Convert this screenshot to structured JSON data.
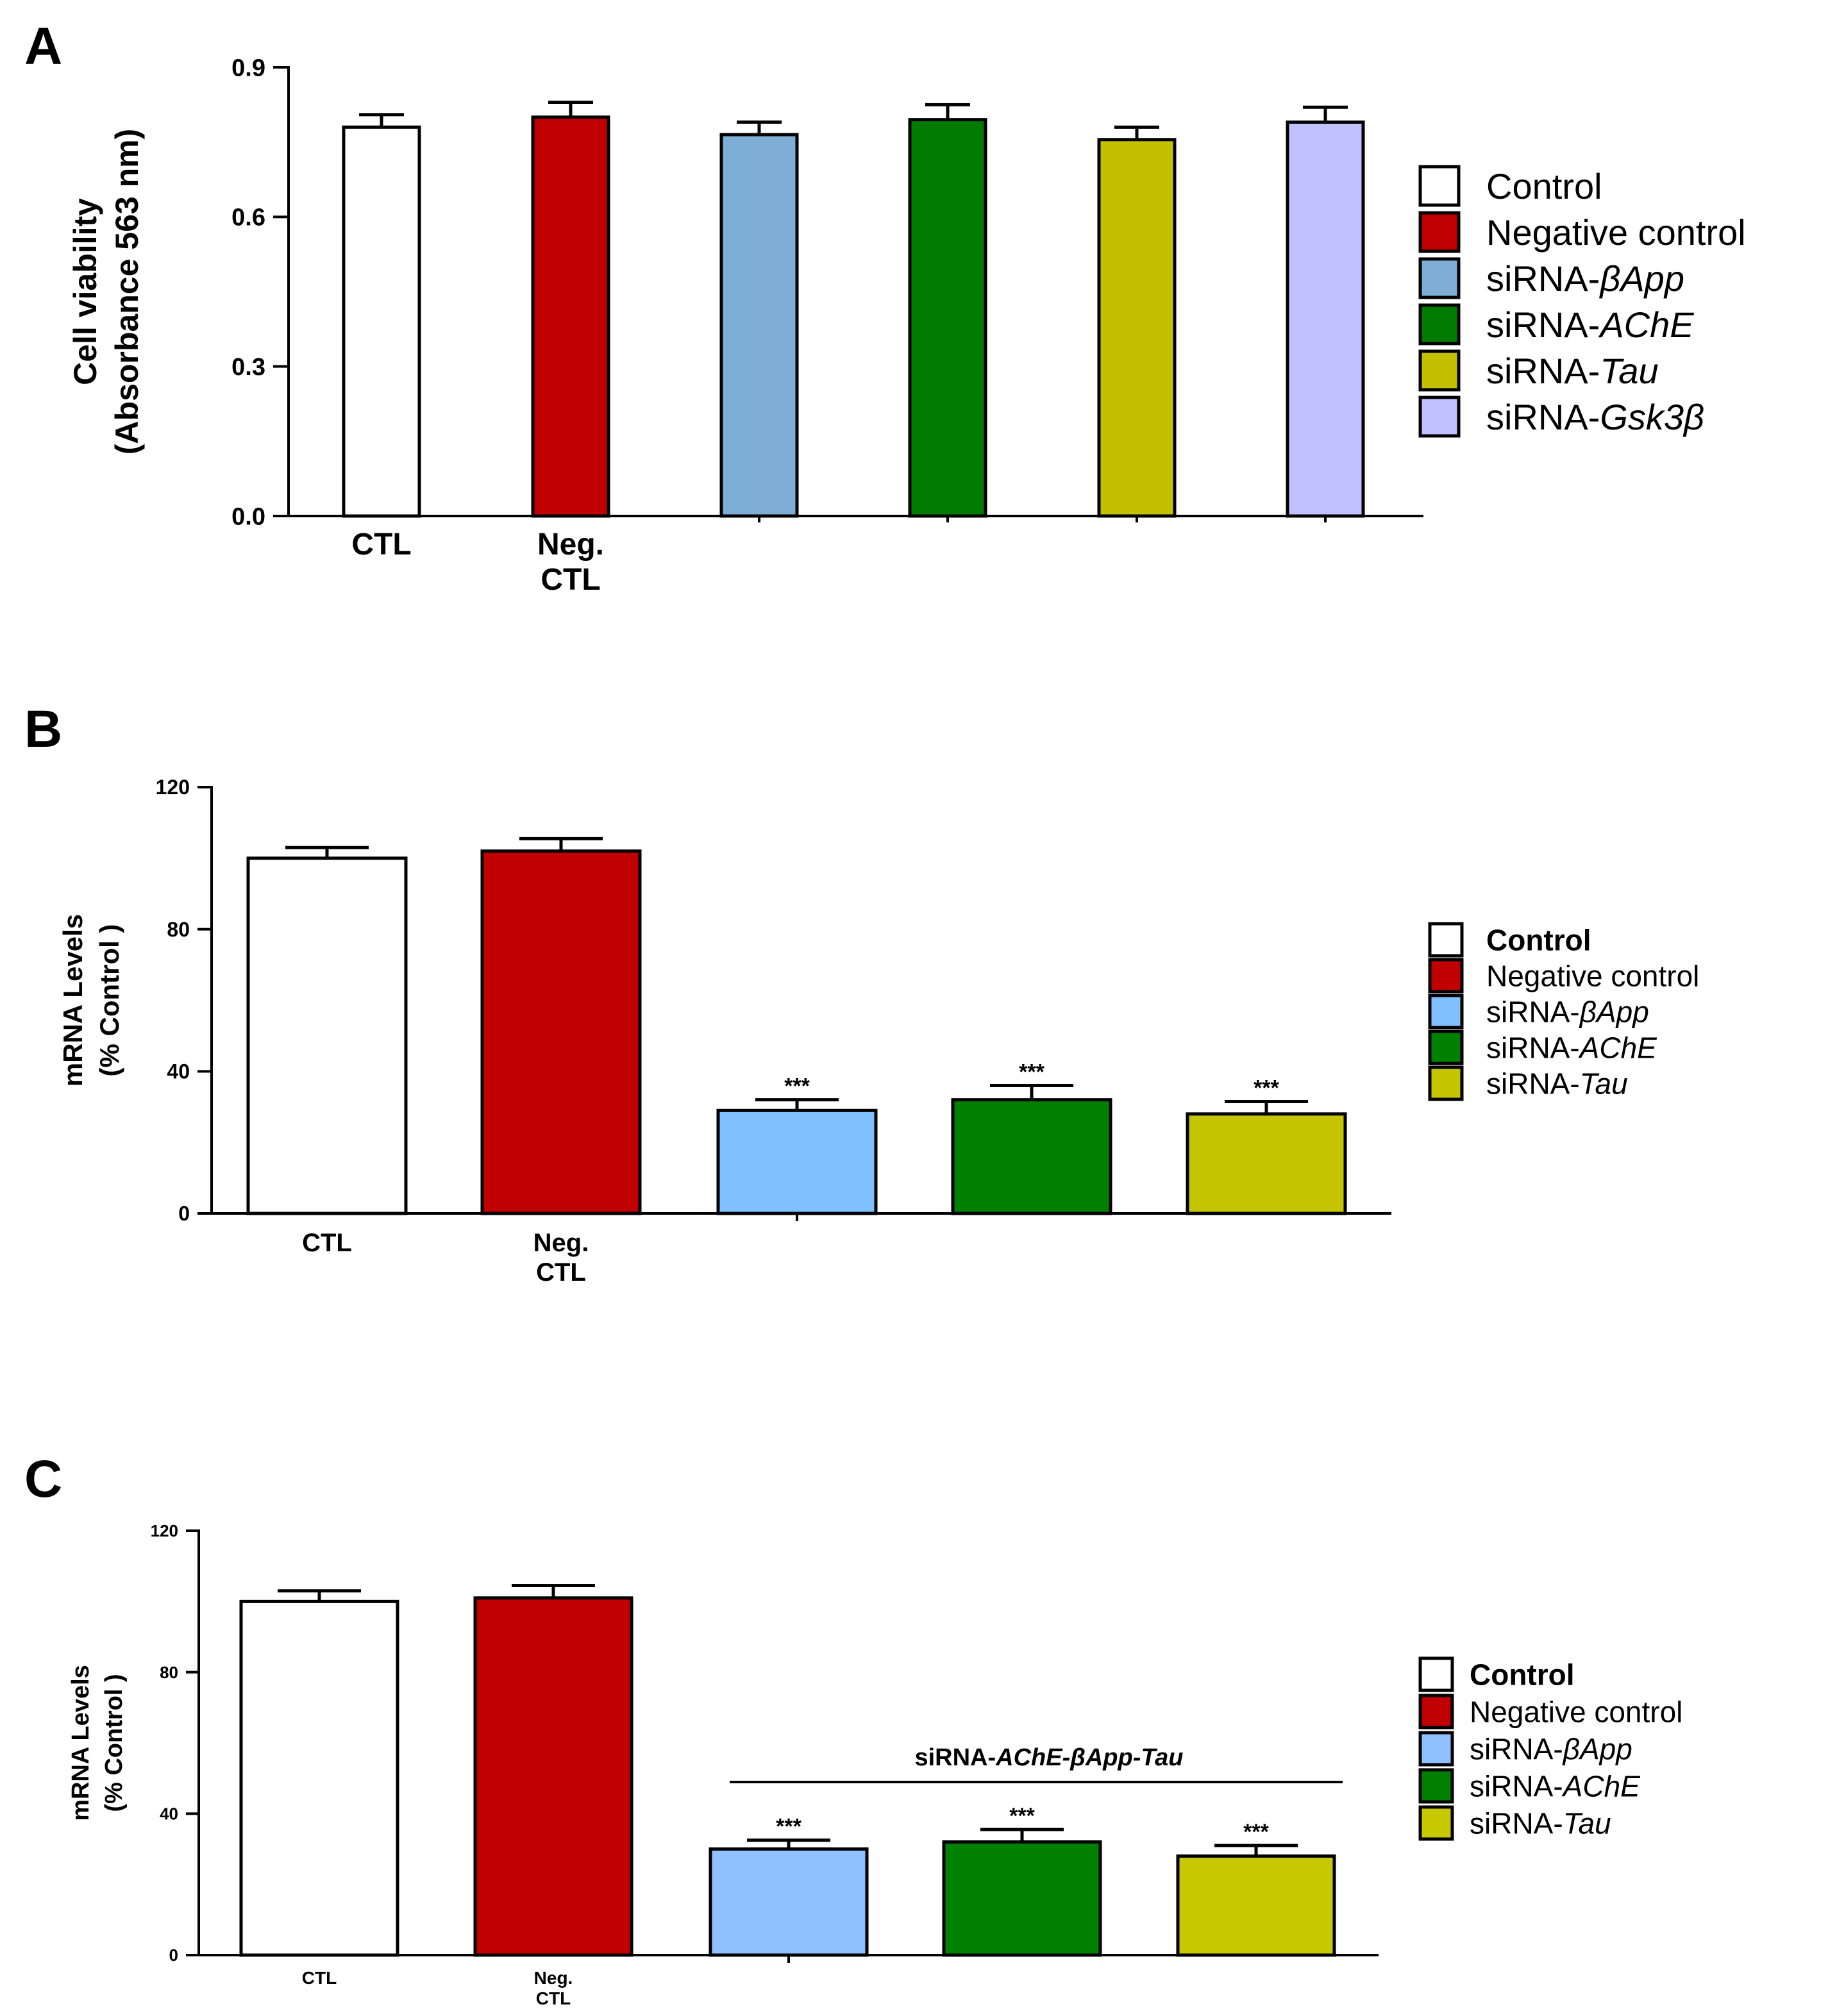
{
  "chart_data": [
    {
      "panel": "A",
      "type": "bar",
      "ylabel": [
        "Cell viability",
        "(Absorbance 563 nm)"
      ],
      "ylim": [
        0,
        0.9
      ],
      "yticks": [
        "0.0",
        "0.3",
        "0.6",
        "0.9"
      ],
      "ytick_values": [
        0,
        0.3,
        0.6,
        0.9
      ],
      "categories": [
        [
          "CTL"
        ],
        [
          "Neg.",
          "CTL"
        ],
        [
          ""
        ],
        [
          ""
        ],
        [
          ""
        ],
        [
          ""
        ]
      ],
      "series": [
        {
          "name": "Control",
          "value": 0.78,
          "error": 0.025,
          "color": "#ffffff",
          "sig": ""
        },
        {
          "name": "Negative control",
          "value": 0.8,
          "error": 0.03,
          "color": "#c00000",
          "sig": ""
        },
        {
          "name": "siRNA-βApp",
          "value": 0.765,
          "error": 0.025,
          "color": "#7eaed6",
          "sig": ""
        },
        {
          "name": "siRNA-AChE",
          "value": 0.795,
          "error": 0.03,
          "color": "#007a00",
          "sig": ""
        },
        {
          "name": "siRNA-Tau",
          "value": 0.755,
          "error": 0.025,
          "color": "#c2c000",
          "sig": ""
        },
        {
          "name": "siRNA-Gsk3β",
          "value": 0.79,
          "error": 0.03,
          "color": "#c0c0ff",
          "sig": ""
        }
      ],
      "legend": [
        {
          "prefix": "Control",
          "italic": ""
        },
        {
          "prefix": "Negative control",
          "italic": ""
        },
        {
          "prefix": "siRNA-",
          "italic": "βApp"
        },
        {
          "prefix": "siRNA-",
          "italic": "AChE"
        },
        {
          "prefix": "siRNA-",
          "italic": "Tau"
        },
        {
          "prefix": "siRNA-",
          "italic": "Gsk3β"
        }
      ]
    },
    {
      "panel": "B",
      "type": "bar",
      "ylabel": [
        "mRNA Levels",
        "(% Control )"
      ],
      "ylim": [
        0,
        120
      ],
      "yticks": [
        "0",
        "40",
        "80",
        "120"
      ],
      "ytick_values": [
        0,
        40,
        80,
        120
      ],
      "categories": [
        [
          "CTL"
        ],
        [
          "Neg.",
          "CTL"
        ],
        [
          ""
        ],
        [
          ""
        ],
        [
          ""
        ]
      ],
      "series": [
        {
          "name": "Control",
          "value": 100,
          "error": 3,
          "color": "#ffffff",
          "sig": ""
        },
        {
          "name": "Negative control",
          "value": 102,
          "error": 3.5,
          "color": "#c00000",
          "sig": ""
        },
        {
          "name": "siRNA-βApp",
          "value": 29,
          "error": 3,
          "color": "#80c0ff",
          "sig": "***"
        },
        {
          "name": "siRNA-AChE",
          "value": 32,
          "error": 4,
          "color": "#008000",
          "sig": "***"
        },
        {
          "name": "siRNA-Tau",
          "value": 28,
          "error": 3.5,
          "color": "#c4c400",
          "sig": "***"
        }
      ],
      "legend": [
        {
          "prefix": "Control",
          "italic": "",
          "bold": true
        },
        {
          "prefix": "Negative control",
          "italic": ""
        },
        {
          "prefix": "siRNA-",
          "italic": "βApp"
        },
        {
          "prefix": "siRNA-",
          "italic": "AChE"
        },
        {
          "prefix": "siRNA-",
          "italic": "Tau"
        }
      ]
    },
    {
      "panel": "C",
      "type": "bar",
      "ylabel": [
        "mRNA Levels",
        "(% Control )"
      ],
      "ylim": [
        0,
        120
      ],
      "yticks": [
        "0",
        "40",
        "80",
        "120"
      ],
      "ytick_values": [
        0,
        40,
        80,
        120
      ],
      "categories": [
        [
          "CTL"
        ],
        [
          "Neg.",
          "CTL"
        ],
        [
          ""
        ],
        [
          ""
        ],
        [
          ""
        ]
      ],
      "series": [
        {
          "name": "Control",
          "value": 100,
          "error": 3,
          "color": "#ffffff",
          "sig": ""
        },
        {
          "name": "Negative control",
          "value": 101,
          "error": 3.5,
          "color": "#c00000",
          "sig": ""
        },
        {
          "name": "siRNA-βApp",
          "value": 30,
          "error": 2.5,
          "color": "#8fc0ff",
          "sig": "***"
        },
        {
          "name": "siRNA-AChE",
          "value": 32,
          "error": 3.5,
          "color": "#008000",
          "sig": "***"
        },
        {
          "name": "siRNA-Tau",
          "value": 28,
          "error": 3,
          "color": "#c8c800",
          "sig": "***"
        }
      ],
      "bracket": {
        "prefix": "siRNA-",
        "italic": "AChE-βApp-Tau",
        "from_index": 2,
        "to_index": 4
      },
      "legend": [
        {
          "prefix": "Control",
          "italic": "",
          "bold": true
        },
        {
          "prefix": "Negative control",
          "italic": ""
        },
        {
          "prefix": "siRNA-",
          "italic": "βApp"
        },
        {
          "prefix": "siRNA-",
          "italic": "AChE"
        },
        {
          "prefix": "siRNA-",
          "italic": "Tau"
        }
      ]
    }
  ]
}
